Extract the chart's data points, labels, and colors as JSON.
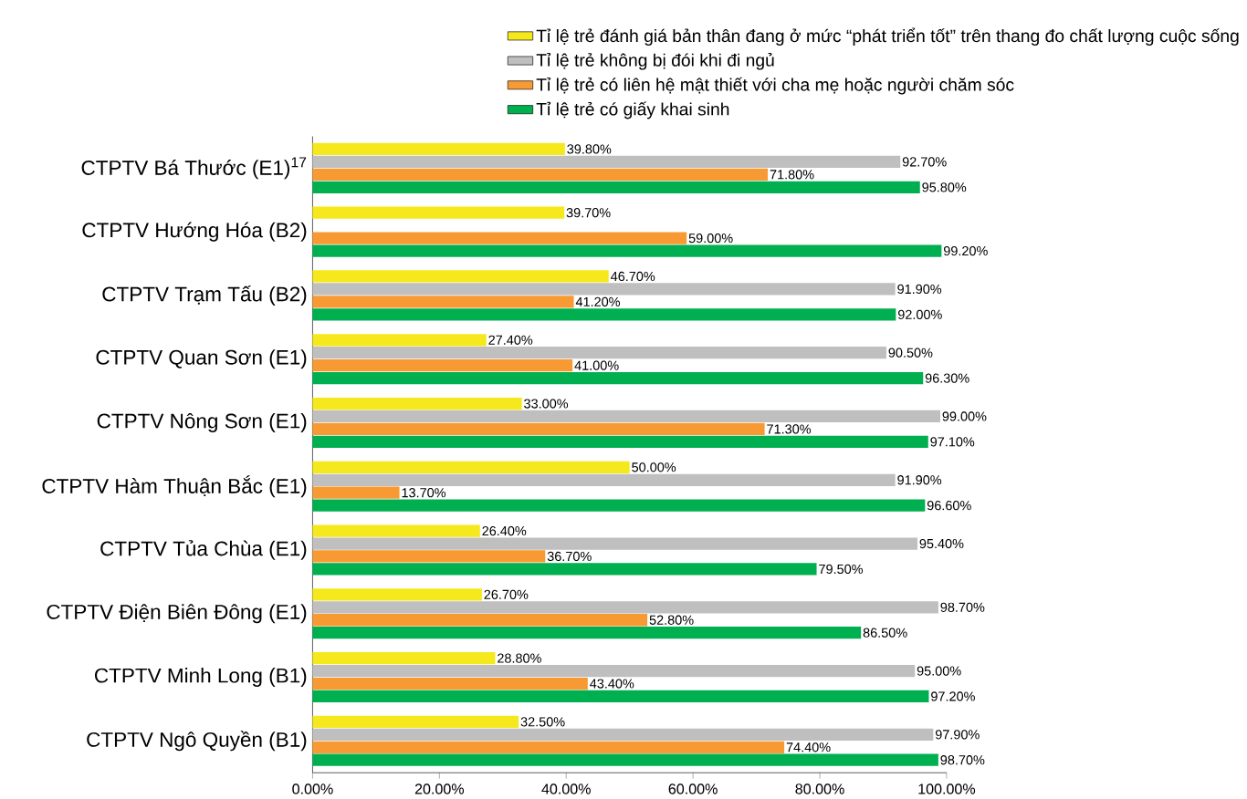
{
  "chart_data": {
    "type": "bar",
    "orientation": "horizontal",
    "categories": [
      "CTPTV Bá Thước (E1)$^{17}$",
      "CTPTV Hướng Hóa (B2)",
      "CTPTV Trạm Tấu (B2)",
      "CTPTV Quan Sơn (E1)",
      "CTPTV Nông Sơn (E1)",
      "CTPTV Hàm Thuận Bắc (E1)",
      "CTPTV Tủa Chùa (E1)",
      "CTPTV Điện Biên Đông (E1)",
      "CTPTV Minh Long (B1)",
      "CTPTV Ngô Quyền (B1)"
    ],
    "series": [
      {
        "name": "Tỉ lệ trẻ đánh giá bản thân đang ở mức “phát triển tốt” trên thang đo chất lượng cuộc sống",
        "color": "#f5e81c",
        "values": [
          39.8,
          39.7,
          46.7,
          27.4,
          33.0,
          50.0,
          26.4,
          26.7,
          28.8,
          32.5
        ],
        "value_labels": [
          "39.80%",
          "39.70%",
          "46.70%",
          "27.40%",
          "33.00%",
          "50.00%",
          "26.40%",
          "26.70%",
          "28.80%",
          "32.50%"
        ]
      },
      {
        "name": "Tỉ lệ trẻ không bị đói khi đi ngủ",
        "color": "#bfbfbf",
        "values": [
          92.7,
          null,
          91.9,
          90.5,
          99.0,
          91.9,
          95.4,
          98.7,
          95.0,
          97.9
        ],
        "value_labels": [
          "92.70%",
          null,
          "91.90%",
          "90.50%",
          "99.00%",
          "91.90%",
          "95.40%",
          "98.70%",
          "95.00%",
          "97.90%"
        ]
      },
      {
        "name": "Tỉ lệ trẻ có liên hệ mật thiết với cha mẹ hoặc người chăm sóc",
        "color": "#f79a33",
        "values": [
          71.8,
          59.0,
          41.2,
          41.0,
          71.3,
          13.7,
          36.7,
          52.8,
          43.4,
          74.4
        ],
        "value_labels": [
          "71.80%",
          "59.00%",
          "41.20%",
          "41.00%",
          "71.30%",
          "13.70%",
          "36.70%",
          "52.80%",
          "43.40%",
          "74.40%"
        ]
      },
      {
        "name": "Tỉ lệ trẻ có giấy khai sinh",
        "color": "#00b050",
        "values": [
          95.8,
          99.2,
          92.0,
          96.3,
          97.1,
          96.6,
          79.5,
          86.5,
          97.2,
          98.7
        ],
        "value_labels": [
          "95.80%",
          "99.20%",
          "92.00%",
          "96.30%",
          "97.10%",
          "96.60%",
          "79.50%",
          "86.50%",
          "97.20%",
          "98.70%"
        ]
      }
    ],
    "xlim": [
      0,
      100
    ],
    "xticks": [
      {
        "value": 0,
        "label": "0.00%"
      },
      {
        "value": 20,
        "label": "20.00%"
      },
      {
        "value": 40,
        "label": "40.00%"
      },
      {
        "value": 60,
        "label": "60.00%"
      },
      {
        "value": 80,
        "label": "80.00%"
      },
      {
        "value": 100,
        "label": "100.00%"
      }
    ],
    "legend": "top",
    "grid": false
  }
}
